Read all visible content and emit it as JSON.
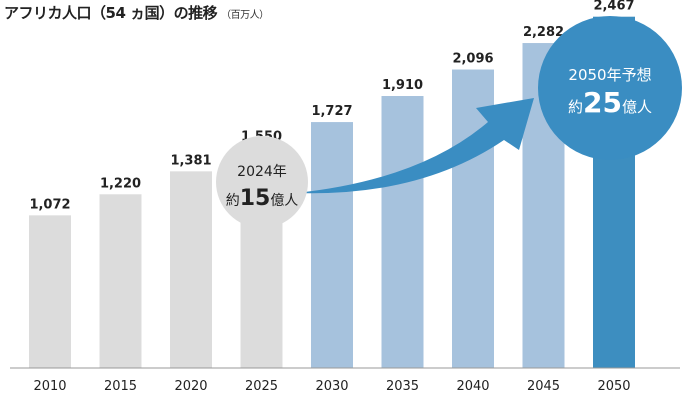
{
  "title": "アフリカ人口（54 ヵ国）の推移",
  "unit": "（百万人）",
  "colors": {
    "past": "#dcdcdc",
    "projected": "#a6c2dd",
    "highlight": "#3d8ec0",
    "arrow": "#3a8dc2",
    "bubble_2024": "#dcdcdc",
    "bubble_2050": "#3a8dc2",
    "axis": "#999999"
  },
  "annotations": {
    "current": {
      "line1": "2024年",
      "prefix": "約",
      "number": "15",
      "suffix": "億人"
    },
    "forecast": {
      "line1": "2050年予想",
      "prefix": "約",
      "number": "25",
      "suffix": "億人"
    }
  },
  "chart_data": {
    "type": "bar",
    "title": "アフリカ人口（54 ヵ国）の推移",
    "ylabel": "百万人",
    "categories": [
      "2010",
      "2015",
      "2020",
      "2025",
      "2030",
      "2035",
      "2040",
      "2045",
      "2050"
    ],
    "values": [
      1072,
      1220,
      1381,
      1550,
      1727,
      1910,
      2096,
      2282,
      2467
    ],
    "labels": [
      "1,072",
      "1,220",
      "1,381",
      "1,550",
      "1,727",
      "1,910",
      "2,096",
      "2,282",
      "2,467"
    ],
    "bar_style": [
      "past",
      "past",
      "past",
      "past",
      "projected",
      "projected",
      "projected",
      "projected",
      "highlight"
    ],
    "ylim": [
      0,
      2500
    ],
    "grid": false
  }
}
